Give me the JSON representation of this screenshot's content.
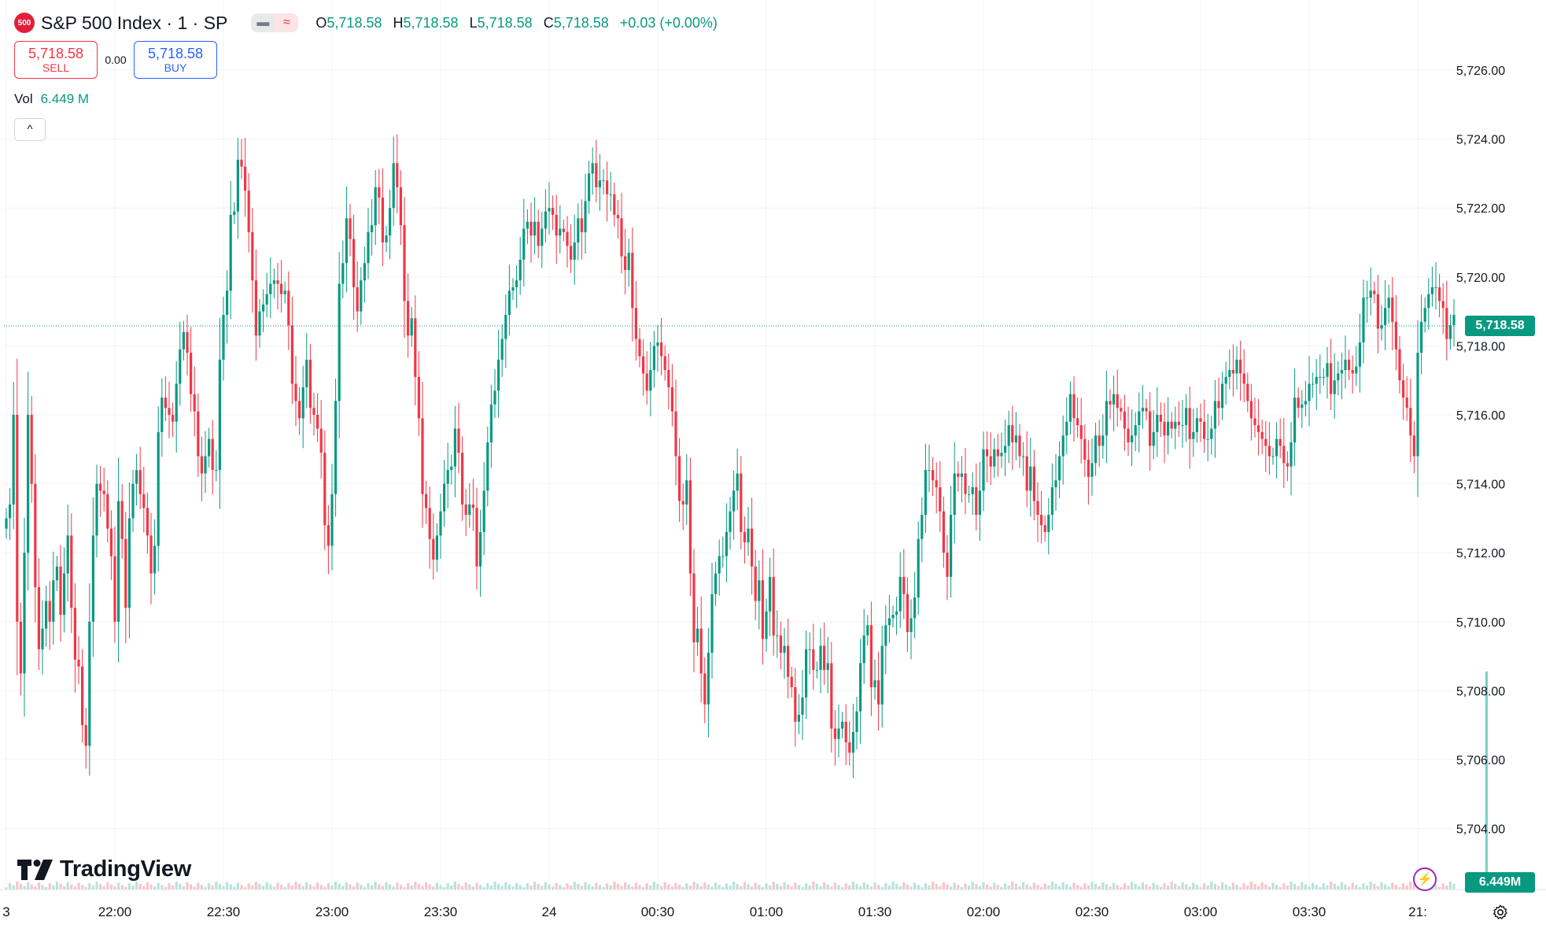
{
  "header": {
    "badge": "500",
    "symbol": "S&P 500 Index · 1 · SP",
    "o_label": "O",
    "o_value": "5,718.58",
    "h_label": "H",
    "h_value": "5,718.58",
    "l_label": "L",
    "l_value": "5,718.58",
    "c_label": "C",
    "c_value": "5,718.58",
    "change": "+0.03 (+0.00%)"
  },
  "trade": {
    "sell_price": "5,718.58",
    "sell_label": "SELL",
    "spread": "0.00",
    "buy_price": "5,718.58",
    "buy_label": "BUY"
  },
  "volume": {
    "label": "Vol",
    "value": "6.449 M",
    "tag": "6.449M"
  },
  "collapse_glyph": "^",
  "logo": {
    "text": "TradingView"
  },
  "last_price_tag": "5,718.58",
  "colors": {
    "up": "#089981",
    "down": "#f23645",
    "grid": "#f0f3fa",
    "axis_text": "#131722",
    "volume_last": "#7fd1c2"
  },
  "icons": [
    "gear-icon",
    "lightning-icon",
    "chevron-up-icon"
  ],
  "chart_data": {
    "type": "candlestick",
    "ylim": [
      5702.8,
      5727.2
    ],
    "y_ticks": [
      "5,726.00",
      "5,724.00",
      "5,722.00",
      "5,720.00",
      "5,718.00",
      "5,716.00",
      "5,714.00",
      "5,712.00",
      "5,710.00",
      "5,708.00",
      "5,706.00",
      "5,704.00"
    ],
    "y_tick_values": [
      5726,
      5724,
      5722,
      5720,
      5718,
      5716,
      5714,
      5712,
      5710,
      5708,
      5706,
      5704
    ],
    "x_ticks": [
      "3",
      "22:00",
      "22:30",
      "23:00",
      "23:30",
      "24",
      "00:30",
      "01:00",
      "01:30",
      "02:00",
      "02:30",
      "03:00",
      "03:30",
      "21:"
    ],
    "x_tick_minutes": [
      -30,
      0,
      30,
      60,
      90,
      120,
      150,
      180,
      210,
      240,
      270,
      300,
      330,
      360
    ],
    "last_price": 5718.58,
    "candle_interval_minutes": 1,
    "first_candle_minute": -30,
    "closes": [
      5713,
      5713.4,
      5716,
      5710,
      5708.5,
      5712,
      5716,
      5714,
      5711,
      5709.2,
      5709.8,
      5710.6,
      5710,
      5711.2,
      5711.6,
      5710.2,
      5711.4,
      5712.5,
      5710.4,
      5708.9,
      5708.7,
      5707,
      5706.4,
      5710,
      5712.5,
      5714,
      5713.8,
      5713.7,
      5712.7,
      5711.9,
      5710,
      5713.5,
      5712.4,
      5710.4,
      5713,
      5714,
      5714.4,
      5713.7,
      5713.3,
      5712.5,
      5711.4,
      5712.2,
      5715.5,
      5716.5,
      5716.2,
      5716,
      5715.8,
      5716.9,
      5717.9,
      5718.4,
      5717.8,
      5716.6,
      5716.1,
      5714.8,
      5714.3,
      5714.8,
      5715.3,
      5714.4,
      5714.4,
      5717.6,
      5718.9,
      5719.6,
      5721.8,
      5721.9,
      5723.4,
      5723.2,
      5722.5,
      5721.3,
      5719.9,
      5718.3,
      5719,
      5719.2,
      5719.5,
      5719.8,
      5719.9,
      5719.8,
      5719.5,
      5719.6,
      5718.6,
      5716.9,
      5716.4,
      5715.9,
      5716.8,
      5717.6,
      5716.2,
      5716,
      5715.6,
      5714.9,
      5712.8,
      5712.2,
      5713.7,
      5716.4,
      5719.8,
      5720.4,
      5721.7,
      5721.1,
      5719.7,
      5719,
      5719.9,
      5720.4,
      5721.3,
      5721.5,
      5722.6,
      5722.3,
      5721,
      5721.2,
      5722,
      5723.3,
      5722.6,
      5721.5,
      5719.3,
      5718.3,
      5718.8,
      5717.1,
      5715.9,
      5713.7,
      5713.3,
      5712.4,
      5711.8,
      5712.5,
      5713.2,
      5714,
      5714.4,
      5714.5,
      5715.6,
      5714.9,
      5713.4,
      5713.1,
      5713.4,
      5713.3,
      5711.6,
      5712.6,
      5713.8,
      5715.2,
      5716.3,
      5716.7,
      5717.6,
      5718.2,
      5718.9,
      5719.6,
      5719.7,
      5719.9,
      5720.5,
      5721.4,
      5721.6,
      5721.2,
      5721.6,
      5720.9,
      5721.4,
      5721.9,
      5722,
      5721.8,
      5721.2,
      5721.4,
      5721.3,
      5720.9,
      5720.5,
      5721,
      5721.7,
      5721.3,
      5722.2,
      5723,
      5723.3,
      5722.6,
      5722.8,
      5722.8,
      5722.4,
      5722.4,
      5721.8,
      5721.7,
      5720.6,
      5720.2,
      5720.7,
      5719.1,
      5718.2,
      5717.7,
      5717.2,
      5716.7,
      5717.3,
      5718,
      5718.1,
      5717.7,
      5717.3,
      5716.8,
      5716.1,
      5714.8,
      5713.5,
      5713.4,
      5714.1,
      5711.4,
      5709.4,
      5709.8,
      5708.5,
      5707.6,
      5709.1,
      5710.8,
      5711.4,
      5711.9,
      5711.9,
      5712.6,
      5713.2,
      5713.8,
      5714.3,
      5712.6,
      5712.3,
      5712.7,
      5711.6,
      5710.6,
      5711.2,
      5709.5,
      5710.3,
      5711.3,
      5709.6,
      5709.6,
      5709.1,
      5709.3,
      5708.4,
      5708.1,
      5707.1,
      5707.3,
      5707.8,
      5709.2,
      5709.2,
      5708.6,
      5708.6,
      5709.3,
      5708.6,
      5708.8,
      5706.9,
      5706.6,
      5706.9,
      5707.1,
      5706.5,
      5706.2,
      5706.8,
      5707.4,
      5708.8,
      5709.6,
      5709.9,
      5708.1,
      5708.3,
      5707.6,
      5709.3,
      5709.9,
      5710.1,
      5710.2,
      5710.3,
      5711.3,
      5710.8,
      5709.7,
      5710.1,
      5710.7,
      5712.4,
      5713.1,
      5714.4,
      5714.4,
      5714.1,
      5713.9,
      5713.2,
      5712,
      5711.3,
      5713.1,
      5714.3,
      5714.2,
      5714.3,
      5713.7,
      5713.7,
      5713.9,
      5713.1,
      5713.8,
      5715,
      5714.8,
      5714.5,
      5715,
      5714.8,
      5714.9,
      5715.1,
      5715.7,
      5715.2,
      5715.4,
      5714.8,
      5714.8,
      5713.8,
      5714.5,
      5713.5,
      5713.1,
      5712.8,
      5712.6,
      5713.1,
      5713.9,
      5714.1,
      5714.8,
      5715.4,
      5715.8,
      5716.6,
      5715.9,
      5715.7,
      5715.3,
      5714.7,
      5714.2,
      5714.6,
      5715.4,
      5715.1,
      5715.4,
      5716.4,
      5716.3,
      5716.6,
      5716.2,
      5716.1,
      5715.6,
      5715.2,
      5715.4,
      5715.7,
      5716.1,
      5716.2,
      5716.1,
      5715.1,
      5715.5,
      5716,
      5715.8,
      5715.4,
      5715.8,
      5715.6,
      5715.8,
      5715.7,
      5715.7,
      5716.2,
      5715.3,
      5715.5,
      5715.9,
      5715.8,
      5715.3,
      5715.3,
      5715.6,
      5716.4,
      5716.2,
      5716.9,
      5717.1,
      5717.3,
      5717.2,
      5717.6,
      5717.2,
      5716.9,
      5716.4,
      5715.9,
      5715.7,
      5715.5,
      5715.3,
      5715.1,
      5714.8,
      5714.8,
      5715.3,
      5715.1,
      5714.6,
      5714.5,
      5715.2,
      5716.5,
      5716.2,
      5716.3,
      5716.4,
      5716.9,
      5716.9,
      5717.1,
      5717.1,
      5717.1,
      5717.5,
      5716.6,
      5717,
      5717.2,
      5717.3,
      5717.6,
      5717.3,
      5717.2,
      5717.4,
      5718.1,
      5719.4,
      5719.4,
      5719.6,
      5719.5,
      5718.5,
      5718.6,
      5719.1,
      5719.4,
      5718.7,
      5717.9,
      5717,
      5716.5,
      5716.2,
      5715.4,
      5714.8,
      5717.8,
      5718.7,
      5719.1,
      5719.5,
      5719.7,
      5719.7,
      5719.3,
      5719.1,
      5718.2,
      5718.6,
      5718.9,
      5718.4,
      5717.5,
      5717.7,
      5718,
      5718.3,
      5718.8,
      5718.1,
      5718.59,
      5718.58
    ],
    "volume_last": "6.449M"
  }
}
